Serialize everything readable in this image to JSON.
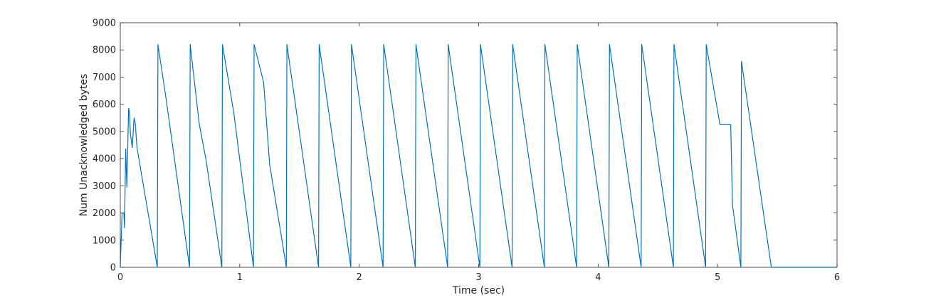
{
  "chart_data": {
    "type": "line",
    "title": "",
    "xlabel": "Time (sec)",
    "ylabel": "Num Unacknowledged bytes",
    "xlim": [
      0,
      6
    ],
    "ylim": [
      0,
      9000
    ],
    "xticks": [
      0,
      1,
      2,
      3,
      4,
      5,
      6
    ],
    "yticks": [
      0,
      1000,
      2000,
      3000,
      4000,
      5000,
      6000,
      7000,
      8000,
      9000
    ],
    "grid": false,
    "legend": "none",
    "line_color": "#0072BD",
    "series": [
      {
        "x": [
          0,
          0.015,
          0.03,
          0.035,
          0.045,
          0.055,
          0.07,
          0.075,
          0.085,
          0.1,
          0.115,
          0.125,
          0.14,
          0.31,
          0.315,
          0.38,
          0.58,
          0.585,
          0.66,
          0.72,
          0.85,
          0.855,
          0.95,
          1.115,
          1.12,
          1.2,
          1.25,
          1.39,
          1.395,
          1.66,
          1.665,
          1.93,
          1.935,
          2.2,
          2.205,
          2.47,
          2.475,
          2.74,
          2.745,
          3.01,
          3.015,
          3.28,
          3.285,
          3.55,
          3.555,
          3.82,
          3.825,
          4.09,
          4.095,
          4.36,
          4.365,
          4.63,
          4.635,
          4.9,
          4.905,
          5.02,
          5.11,
          5.125,
          5.195,
          5.2,
          5.45,
          6.0
        ],
        "y": [
          0,
          2000,
          2000,
          1450,
          4350,
          2950,
          5850,
          5750,
          4900,
          4400,
          5500,
          5300,
          4400,
          0,
          8200,
          6300,
          0,
          8200,
          5300,
          3900,
          0,
          8200,
          5700,
          0,
          8200,
          6800,
          3800,
          0,
          8200,
          0,
          8200,
          0,
          8200,
          0,
          8200,
          0,
          8200,
          0,
          8200,
          0,
          8200,
          0,
          8200,
          0,
          8200,
          0,
          8200,
          0,
          8200,
          0,
          8200,
          0,
          8200,
          0,
          8200,
          5250,
          5250,
          2300,
          0,
          7580,
          0,
          0
        ]
      }
    ]
  }
}
